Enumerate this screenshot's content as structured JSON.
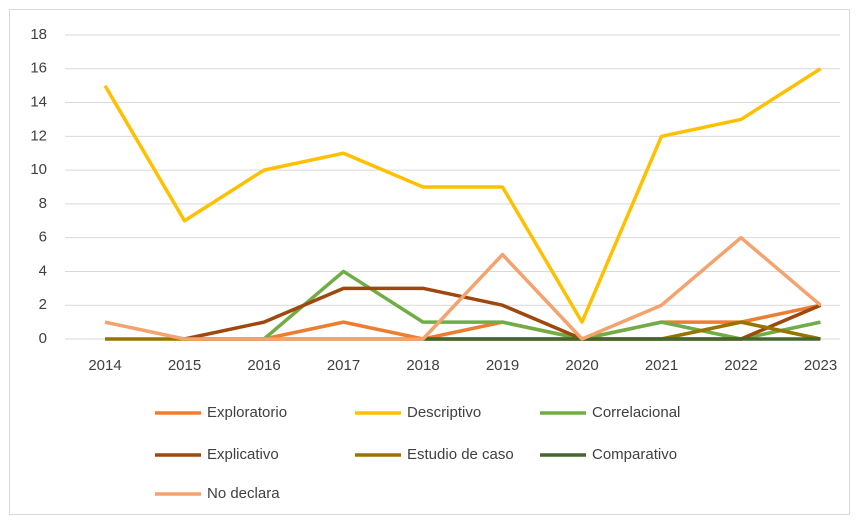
{
  "chart_data": {
    "type": "line",
    "categories": [
      "2014",
      "2015",
      "2016",
      "2017",
      "2018",
      "2019",
      "2020",
      "2021",
      "2022",
      "2023"
    ],
    "ylim": [
      0,
      18
    ],
    "yticks": [
      0,
      2,
      4,
      6,
      8,
      10,
      12,
      14,
      16,
      18
    ],
    "grid": true,
    "series": [
      {
        "name": "Exploratorio",
        "color": "#ed7d31",
        "values": [
          null,
          0,
          0,
          1,
          0,
          1,
          0,
          1,
          1,
          2
        ]
      },
      {
        "name": "Descriptivo",
        "color": "#ffc000",
        "values": [
          15,
          7,
          10,
          11,
          9,
          9,
          1,
          12,
          13,
          16
        ]
      },
      {
        "name": "Correlacional",
        "color": "#70ad47",
        "values": [
          null,
          null,
          0,
          4,
          1,
          1,
          0,
          1,
          0,
          1
        ]
      },
      {
        "name": "Explicativo",
        "color": "#9e480e",
        "values": [
          null,
          0,
          1,
          3,
          3,
          2,
          0,
          0,
          0,
          2
        ]
      },
      {
        "name": "Estudio de caso",
        "color": "#997300",
        "values": [
          0,
          0,
          0,
          0,
          0,
          0,
          0,
          0,
          1,
          0
        ]
      },
      {
        "name": "Comparativo",
        "color": "#43682b",
        "values": [
          null,
          null,
          null,
          null,
          0,
          0,
          0,
          0,
          0,
          0
        ]
      },
      {
        "name": "No declara",
        "color": "#f4a26e",
        "values": [
          1,
          0,
          0,
          0,
          0,
          5,
          0,
          2,
          6,
          2
        ]
      }
    ]
  }
}
